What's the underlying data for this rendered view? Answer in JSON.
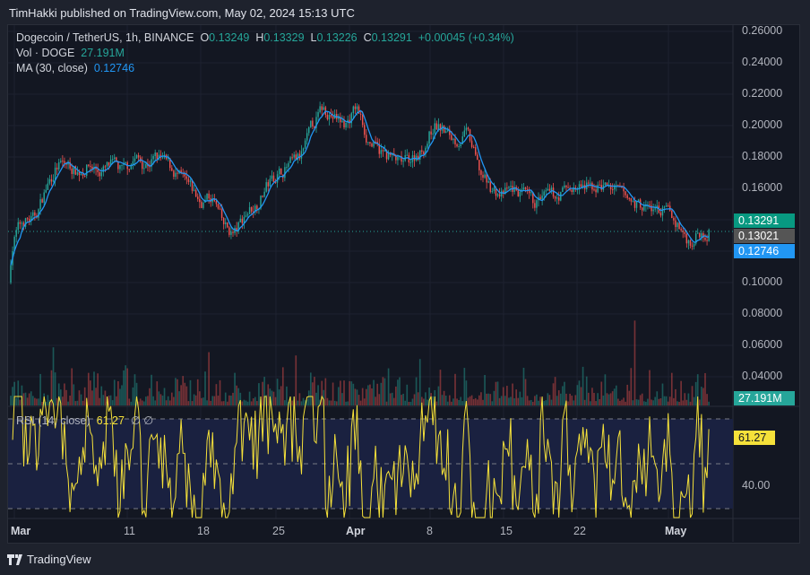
{
  "header": {
    "published": "TimHakki published on TradingView.com, May 02, 2024 15:13 UTC"
  },
  "legend": {
    "symbol": "Dogecoin / TetherUS, 1h, BINANCE",
    "o_label": "O",
    "o": "0.13249",
    "h_label": "H",
    "h": "0.13329",
    "l_label": "L",
    "l": "0.13226",
    "c_label": "C",
    "c": "0.13291",
    "change": "+0.00045 (+0.34%)",
    "vol_label": "Vol · DOGE",
    "vol": "27.191M",
    "ma_label": "MA (30, close)",
    "ma": "0.12746",
    "rsi_label": "RSI (14, close)",
    "rsi": "61.27",
    "rsi_extra": "∅ ∅"
  },
  "price_axis": {
    "labels": [
      "0.26000",
      "0.24000",
      "0.22000",
      "0.20000",
      "0.18000",
      "0.16000",
      "0.10000",
      "0.08000",
      "0.06000",
      "0.04000"
    ],
    "tags": {
      "last": "0.13291",
      "line": "0.13021",
      "ma": "0.12746",
      "vol": "27.191M",
      "rsi": "61.27",
      "rsi_axis": "40.00"
    }
  },
  "time_axis": {
    "labels": [
      "Mar",
      "11",
      "18",
      "25",
      "Apr",
      "8",
      "15",
      "22",
      "May"
    ]
  },
  "colors": {
    "up": "#26a69a",
    "down": "#ef5350",
    "ma": "#2196f3",
    "rsi": "#f5e13a",
    "bg": "#131722"
  },
  "footer": {
    "brand": "TradingView"
  },
  "chart_data": {
    "type": "candlestick",
    "x_start": "2024-03-01",
    "x_end": "2024-05-02",
    "interval": "1h",
    "daily_close": [
      0.13,
      0.14,
      0.14,
      0.16,
      0.175,
      0.175,
      0.17,
      0.175,
      0.17,
      0.175,
      0.17,
      0.18,
      0.175,
      0.18,
      0.175,
      0.167,
      0.16,
      0.15,
      0.155,
      0.135,
      0.13,
      0.145,
      0.15,
      0.163,
      0.17,
      0.175,
      0.18,
      0.2,
      0.212,
      0.205,
      0.2,
      0.213,
      0.19,
      0.183,
      0.18,
      0.175,
      0.18,
      0.185,
      0.202,
      0.195,
      0.19,
      0.195,
      0.17,
      0.16,
      0.155,
      0.16,
      0.155,
      0.15,
      0.155,
      0.155,
      0.16,
      0.16,
      0.16,
      0.162,
      0.16,
      0.155,
      0.15,
      0.148,
      0.146,
      0.145,
      0.135,
      0.125,
      0.133
    ],
    "price_ylim": [
      0.03,
      0.26
    ],
    "rsi_levels": [
      70,
      50,
      30
    ]
  }
}
